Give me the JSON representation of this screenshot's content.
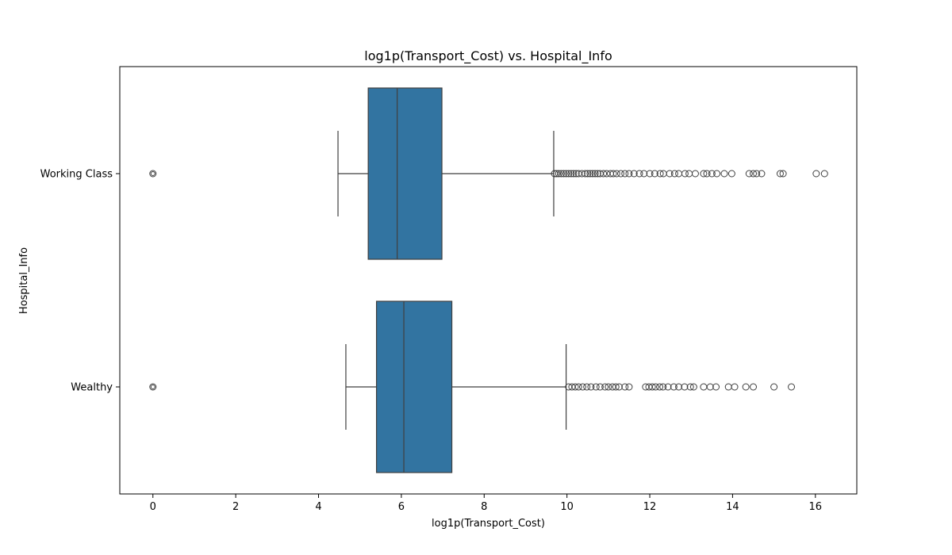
{
  "chart_data": {
    "type": "box",
    "orientation": "horizontal",
    "title": "log1p(Transport_Cost) vs. Hospital_Info",
    "xlabel": "log1p(Transport_Cost)",
    "ylabel": "Hospital_Info",
    "xlim": [
      -0.8,
      17.0
    ],
    "xticks": [
      0,
      2,
      4,
      6,
      8,
      10,
      12,
      14,
      16
    ],
    "xtick_labels": [
      "0",
      "2",
      "4",
      "6",
      "8",
      "10",
      "12",
      "14",
      "16"
    ],
    "grid": false,
    "box_color": "#3274a1",
    "edge_color": "#3f3f3f",
    "categories": [
      "Working Class",
      "Wealthy"
    ],
    "boxes": [
      {
        "category": "Working Class",
        "whisker_low": 4.47,
        "q1": 5.2,
        "median": 5.9,
        "q3": 6.98,
        "whisker_high": 9.68,
        "outliers": [
          0,
          9.7,
          9.75,
          9.8,
          9.86,
          9.92,
          9.98,
          10.04,
          10.1,
          10.16,
          10.22,
          10.28,
          10.36,
          10.44,
          10.5,
          10.56,
          10.62,
          10.68,
          10.74,
          10.8,
          10.88,
          10.96,
          11.05,
          11.12,
          11.2,
          11.3,
          11.4,
          11.5,
          11.62,
          11.75,
          11.86,
          12.0,
          12.12,
          12.25,
          12.33,
          12.48,
          12.6,
          12.7,
          12.85,
          12.95,
          13.1,
          13.3,
          13.38,
          13.5,
          13.62,
          13.8,
          13.98,
          14.4,
          14.5,
          14.58,
          14.7,
          15.15,
          15.22,
          16.02,
          16.22
        ]
      },
      {
        "category": "Wealthy",
        "whisker_low": 4.66,
        "q1": 5.4,
        "median": 6.06,
        "q3": 7.22,
        "whisker_high": 9.98,
        "outliers": [
          0,
          10.04,
          10.12,
          10.2,
          10.28,
          10.38,
          10.48,
          10.58,
          10.7,
          10.8,
          10.92,
          11.0,
          11.1,
          11.18,
          11.26,
          11.4,
          11.5,
          11.9,
          11.98,
          12.06,
          12.14,
          12.24,
          12.32,
          12.44,
          12.58,
          12.7,
          12.84,
          12.98,
          13.06,
          13.3,
          13.46,
          13.6,
          13.9,
          14.05,
          14.32,
          14.5,
          15.0,
          15.42
        ]
      }
    ]
  }
}
